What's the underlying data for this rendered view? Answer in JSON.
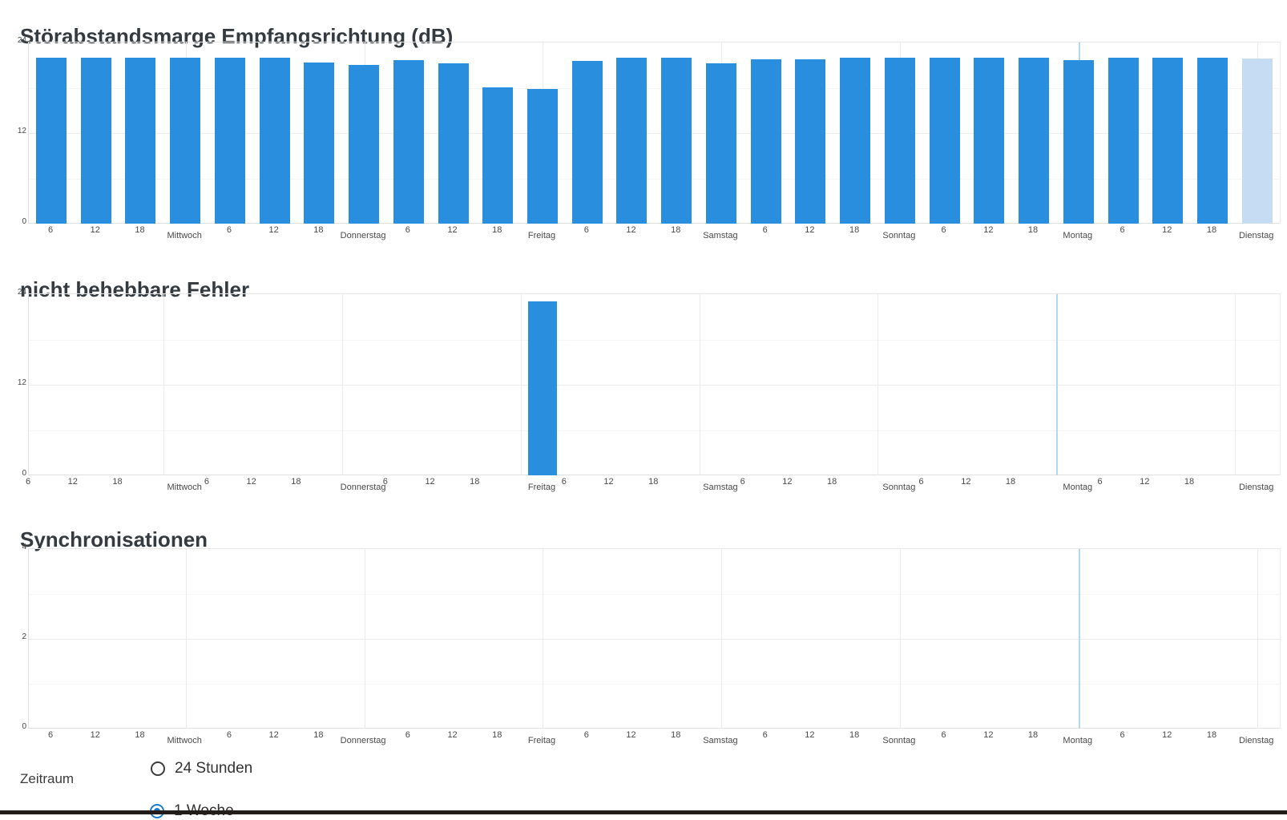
{
  "colors": {
    "bar": "#2a8ede",
    "bar_highlight": "#c6dcf2",
    "day_line_highlight": "#b5d7f0",
    "grid_major": "#ececec",
    "grid_minor": "#f5f5f5",
    "axis_edge": "#e0e0e0",
    "title_text": "#333a40",
    "tick_text": "#474747",
    "bottom_bar": "#221d1b",
    "radio_selected": "#1a7ad0"
  },
  "chart_data": [
    {
      "type": "bar",
      "title": "Störabstandsmarge Empfangsrichtung (dB)",
      "xlabel": "",
      "ylabel": "",
      "ylim": [
        0,
        24
      ],
      "y_ticks": [
        0,
        12,
        24
      ],
      "grid": true,
      "legend": false,
      "categories": [
        "6",
        "12",
        "18",
        "Mittwoch",
        "6",
        "12",
        "18",
        "Donnerstag",
        "6",
        "12",
        "18",
        "Freitag",
        "6",
        "12",
        "18",
        "Samstag",
        "6",
        "12",
        "18",
        "Sonntag",
        "6",
        "12",
        "18",
        "Montag",
        "6",
        "12",
        "18",
        "Dienstag"
      ],
      "values": [
        22,
        22,
        22,
        22,
        22,
        22,
        21.3,
        21,
        21.7,
        21.2,
        18.1,
        17.8,
        21.6,
        22,
        22,
        21.2,
        21.8,
        21.8,
        22,
        22,
        22,
        22,
        22,
        21.7,
        22,
        22,
        22,
        21.9
      ],
      "highlight_last_bar": true,
      "day_marker_line": "Montag"
    },
    {
      "type": "bar",
      "title": "nicht behebbare Fehler",
      "xlabel": "",
      "ylabel": "",
      "ylim": [
        0,
        24
      ],
      "y_ticks": [
        0,
        12,
        24
      ],
      "grid": true,
      "legend": false,
      "categories": [
        "6",
        "12",
        "18",
        "Mittwoch",
        "6",
        "12",
        "18",
        "Donnerstag",
        "6",
        "12",
        "18",
        "Freitag",
        "6",
        "12",
        "18",
        "Samstag",
        "6",
        "12",
        "18",
        "Sonntag",
        "6",
        "12",
        "18",
        "Montag",
        "6",
        "12",
        "18",
        "Dienstag"
      ],
      "values": [
        0,
        0,
        0,
        0,
        0,
        0,
        0,
        0,
        0,
        0,
        0,
        23,
        0,
        0,
        0,
        0,
        0,
        0,
        0,
        0,
        0,
        0,
        0,
        0,
        0,
        0,
        0,
        0
      ],
      "highlight_last_bar": false,
      "day_marker_line": "Montag"
    },
    {
      "type": "bar",
      "title": "Synchronisationen",
      "xlabel": "",
      "ylabel": "",
      "ylim": [
        0,
        4
      ],
      "y_ticks": [
        0,
        2,
        4
      ],
      "grid": true,
      "legend": false,
      "categories": [
        "6",
        "12",
        "18",
        "Mittwoch",
        "6",
        "12",
        "18",
        "Donnerstag",
        "6",
        "12",
        "18",
        "Freitag",
        "6",
        "12",
        "18",
        "Samstag",
        "6",
        "12",
        "18",
        "Sonntag",
        "6",
        "12",
        "18",
        "Montag",
        "6",
        "12",
        "18",
        "Dienstag"
      ],
      "values": [
        0,
        0,
        0,
        0,
        0,
        0,
        0,
        0,
        0,
        0,
        0,
        0,
        0,
        0,
        0,
        0,
        0,
        0,
        0,
        0,
        0,
        0,
        0,
        0,
        0,
        0,
        0,
        0
      ],
      "highlight_last_bar": false,
      "day_marker_line": "Montag"
    }
  ],
  "controls": {
    "label": "Zeitraum",
    "options": [
      {
        "label": "24 Stunden",
        "selected": false
      },
      {
        "label": "1 Woche",
        "selected": true
      }
    ]
  }
}
